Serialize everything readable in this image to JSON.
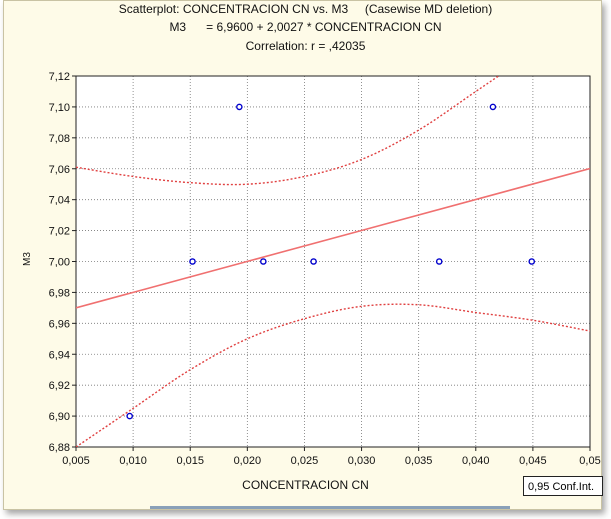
{
  "chart_data": {
    "type": "scatter",
    "title_lines": [
      "Scatterplot: CONCENTRACION CN vs. M3     (Casewise MD deletion)",
      "M3      = 6,9600 + 2,0027 * CONCENTRACION CN",
      "Correlation: r = ,42035"
    ],
    "xlabel": "CONCENTRACION CN",
    "ylabel": "M3",
    "xlim": [
      0.005,
      0.05
    ],
    "ylim": [
      6.88,
      7.12
    ],
    "x_ticks": [
      "0,005",
      "0,010",
      "0,015",
      "0,020",
      "0,025",
      "0,030",
      "0,035",
      "0,040",
      "0,045",
      "0,05"
    ],
    "y_ticks": [
      "6,88",
      "6,90",
      "6,92",
      "6,94",
      "6,96",
      "6,98",
      "7,00",
      "7,02",
      "7,04",
      "7,06",
      "7,08",
      "7,10",
      "7,12"
    ],
    "points": [
      {
        "x": 0.0097,
        "y": 6.9
      },
      {
        "x": 0.0152,
        "y": 7.0
      },
      {
        "x": 0.0193,
        "y": 7.1
      },
      {
        "x": 0.0214,
        "y": 7.0
      },
      {
        "x": 0.0258,
        "y": 7.0
      },
      {
        "x": 0.0368,
        "y": 7.0
      },
      {
        "x": 0.0415,
        "y": 7.1
      },
      {
        "x": 0.0449,
        "y": 7.0
      }
    ],
    "regression": {
      "intercept": 6.96,
      "slope": 2.0027
    },
    "confidence_band": {
      "upper": [
        [
          0.005,
          7.061
        ],
        [
          0.01,
          7.055
        ],
        [
          0.015,
          7.051
        ],
        [
          0.02,
          7.05
        ],
        [
          0.025,
          7.055
        ],
        [
          0.03,
          7.066
        ],
        [
          0.035,
          7.085
        ],
        [
          0.04,
          7.11
        ],
        [
          0.042,
          7.12
        ]
      ],
      "lower": [
        [
          0.005,
          6.88
        ],
        [
          0.01,
          6.905
        ],
        [
          0.015,
          6.93
        ],
        [
          0.02,
          6.95
        ],
        [
          0.025,
          6.963
        ],
        [
          0.03,
          6.971
        ],
        [
          0.035,
          6.972
        ],
        [
          0.04,
          6.967
        ],
        [
          0.045,
          6.962
        ],
        [
          0.05,
          6.955
        ]
      ]
    },
    "grid": true,
    "legend_label": "0,95 Conf.Int.",
    "colors": {
      "points": "#0000cc",
      "regression_line": "#f07070",
      "confidence_band": "#e04040",
      "grid": "#777777",
      "background": "#fefbe8"
    }
  }
}
